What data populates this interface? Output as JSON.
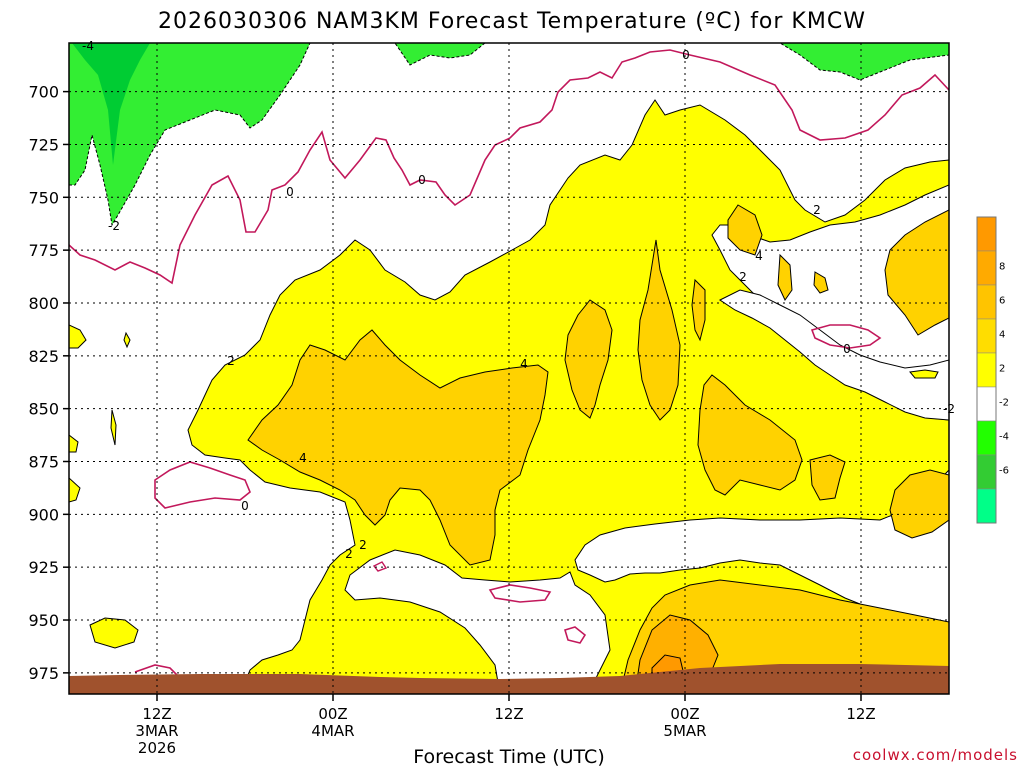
{
  "chart_data": {
    "type": "contour",
    "title": "2026030306 NAM3KM Forecast Temperature (ºC) for KMCW",
    "xlabel": "Forecast Time (UTC)",
    "ylabel": "",
    "y_ticks": [
      "700",
      "725",
      "750",
      "775",
      "800",
      "825",
      "850",
      "875",
      "900",
      "925",
      "950",
      "975"
    ],
    "x_ticks": [
      {
        "hour": 6,
        "lines": [
          "12Z",
          "3MAR",
          "2026"
        ]
      },
      {
        "hour": 18,
        "lines": [
          "00Z",
          "4MAR"
        ]
      },
      {
        "hour": 30,
        "lines": [
          "12Z"
        ]
      },
      {
        "hour": 42,
        "lines": [
          "00Z",
          "5MAR"
        ]
      },
      {
        "hour": 54,
        "lines": [
          "12Z"
        ]
      }
    ],
    "x_range_hours": [
      0,
      60
    ],
    "y_range_hpa": [
      677,
      985
    ],
    "legend": {
      "placement": "right",
      "levels": [
        {
          "label": "",
          "color": "#ff9900"
        },
        {
          "label": "8",
          "color": "#ffaa00"
        },
        {
          "label": "6",
          "color": "#ffc400"
        },
        {
          "label": "4",
          "color": "#ffdd00"
        },
        {
          "label": "2",
          "color": "#ffff00"
        },
        {
          "label": "-2",
          "color": "#ffffff"
        },
        {
          "label": "-4",
          "color": "#22ff00"
        },
        {
          "label": "-6",
          "color": "#33cc33"
        },
        {
          "label": "",
          "color": "#00ff88"
        }
      ]
    },
    "contour_labels": [
      "-4",
      "-2",
      "0",
      "0",
      "0",
      "2",
      "4",
      "2",
      "2",
      "4",
      "4",
      "2",
      "2",
      "0",
      "0",
      "-2"
    ],
    "colors": {
      "ground": "#a0522d",
      "zero_line": "#c2185b",
      "cold": "#22ee33",
      "warm2": "#ffff00",
      "warm4": "#ffd700",
      "warm6": "#ffb400",
      "warm8": "#ff9900"
    }
  },
  "credit": "coolwx.com/models"
}
